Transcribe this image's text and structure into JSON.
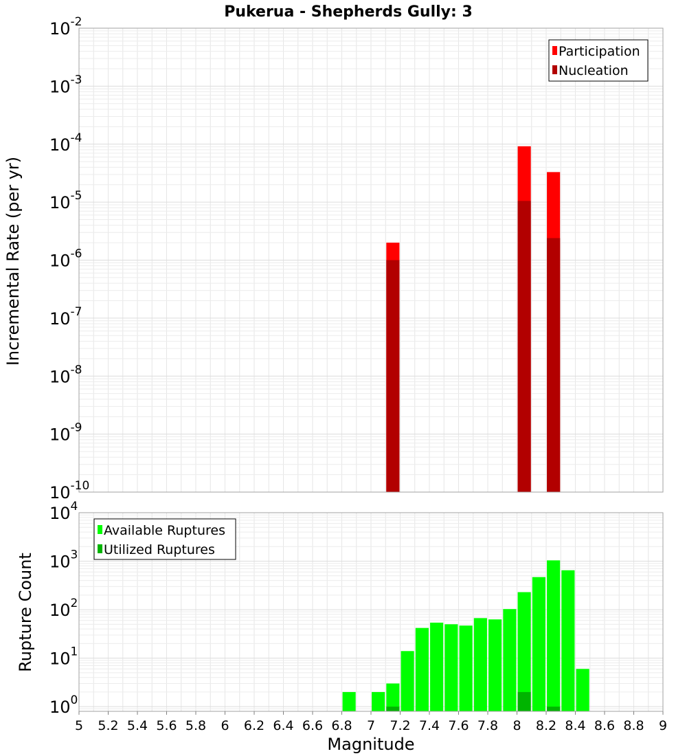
{
  "chart_data": [
    {
      "type": "bar",
      "title": "Pukerua - Shepherds Gully: 3",
      "xlabel": "",
      "ylabel": "Incremental Rate (per yr)",
      "yscale": "log",
      "xlim": [
        5,
        9
      ],
      "ylim": [
        1e-10,
        0.01
      ],
      "grid": true,
      "legend_position": "top-right",
      "series": [
        {
          "name": "Participation",
          "color": "#ff0000",
          "points": [
            {
              "x": 7.15,
              "y": 2e-06
            },
            {
              "x": 8.05,
              "y": 9.2e-05
            },
            {
              "x": 8.25,
              "y": 3.3e-05
            }
          ]
        },
        {
          "name": "Nucleation",
          "color": "#b20000",
          "points": [
            {
              "x": 7.15,
              "y": 1e-06
            },
            {
              "x": 8.05,
              "y": 1.05e-05
            },
            {
              "x": 8.25,
              "y": 2.4e-06
            }
          ]
        }
      ],
      "yticks": [
        {
          "base": "10",
          "exp": "-2"
        },
        {
          "base": "10",
          "exp": "-3"
        },
        {
          "base": "10",
          "exp": "-4"
        },
        {
          "base": "10",
          "exp": "-5"
        },
        {
          "base": "10",
          "exp": "-6"
        },
        {
          "base": "10",
          "exp": "-7"
        },
        {
          "base": "10",
          "exp": "-8"
        },
        {
          "base": "10",
          "exp": "-9"
        },
        {
          "base": "10",
          "exp": "-10"
        }
      ]
    },
    {
      "type": "bar",
      "title": "",
      "xlabel": "Magnitude",
      "ylabel": "Rupture Count",
      "yscale": "log",
      "xlim": [
        5,
        9
      ],
      "ylim": [
        0.8,
        10000
      ],
      "grid": true,
      "legend_position": "top-left",
      "series": [
        {
          "name": "Available Ruptures",
          "color": "#00ff00",
          "points": [
            {
              "x": 6.85,
              "y": 2
            },
            {
              "x": 7.05,
              "y": 2
            },
            {
              "x": 7.15,
              "y": 3
            },
            {
              "x": 7.25,
              "y": 14
            },
            {
              "x": 7.35,
              "y": 42
            },
            {
              "x": 7.45,
              "y": 54
            },
            {
              "x": 7.55,
              "y": 50
            },
            {
              "x": 7.65,
              "y": 47
            },
            {
              "x": 7.75,
              "y": 67
            },
            {
              "x": 7.85,
              "y": 63
            },
            {
              "x": 7.95,
              "y": 103
            },
            {
              "x": 8.05,
              "y": 230
            },
            {
              "x": 8.15,
              "y": 470
            },
            {
              "x": 8.25,
              "y": 1040
            },
            {
              "x": 8.35,
              "y": 650
            },
            {
              "x": 8.45,
              "y": 6
            }
          ]
        },
        {
          "name": "Utilized Ruptures",
          "color": "#00b400",
          "points": [
            {
              "x": 7.15,
              "y": 1
            },
            {
              "x": 8.05,
              "y": 2
            },
            {
              "x": 8.25,
              "y": 1
            }
          ]
        }
      ],
      "xticks": [
        "5",
        "5.2",
        "5.4",
        "5.6",
        "5.8",
        "6",
        "6.2",
        "6.4",
        "6.6",
        "6.8",
        "7",
        "7.2",
        "7.4",
        "7.6",
        "7.8",
        "8",
        "8.2",
        "8.4",
        "8.6",
        "8.8",
        "9"
      ],
      "yticks": [
        {
          "base": "10",
          "exp": "4"
        },
        {
          "base": "10",
          "exp": "3"
        },
        {
          "base": "10",
          "exp": "2"
        },
        {
          "base": "10",
          "exp": "1"
        },
        {
          "base": "10",
          "exp": "0"
        }
      ]
    }
  ]
}
